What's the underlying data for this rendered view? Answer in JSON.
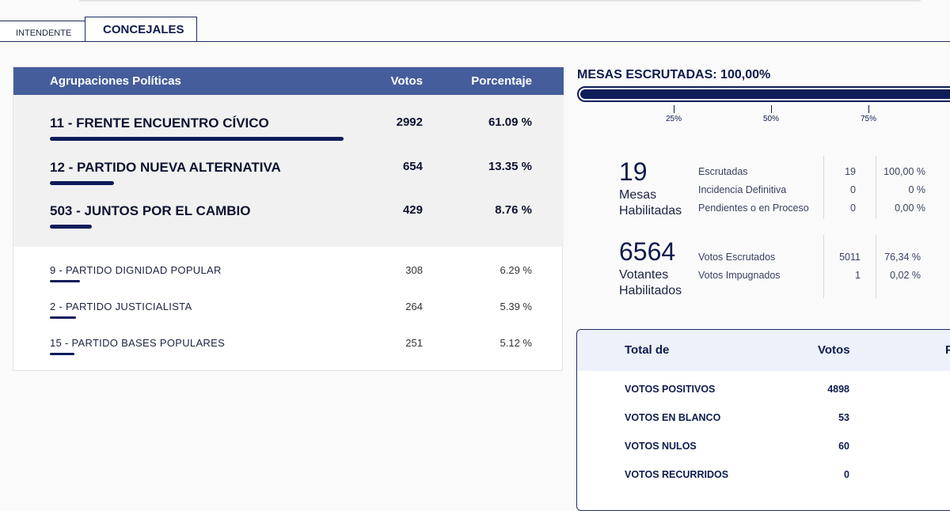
{
  "tabs": [
    {
      "label": "Intendente"
    },
    {
      "label": "CONCEJALES"
    }
  ],
  "results": {
    "headers": {
      "party": "Agrupaciones Políticas",
      "votes": "Votos",
      "percent": "Porcentaje"
    },
    "rows": [
      {
        "name": "11 - FRENTE ENCUENTRO CÍVICO",
        "votes": "2992",
        "percent": "61.09 %",
        "share": 61.09
      },
      {
        "name": "12 - PARTIDO NUEVA ALTERNATIVA",
        "votes": "654",
        "percent": "13.35 %",
        "share": 13.35
      },
      {
        "name": "503 - JUNTOS POR EL CAMBIO",
        "votes": "429",
        "percent": "8.76 %",
        "share": 8.76
      },
      {
        "name": "9 - PARTIDO DIGNIDAD POPULAR",
        "votes": "308",
        "percent": "6.29 %",
        "share": 6.29
      },
      {
        "name": "2 - PARTIDO JUSTICIALISTA",
        "votes": "264",
        "percent": "5.39 %",
        "share": 5.39
      },
      {
        "name": "15 - PARTIDO BASES POPULARES",
        "votes": "251",
        "percent": "5.12 %",
        "share": 5.12
      }
    ]
  },
  "mesas": {
    "title": "MESAS ESCRUTADAS: 100,00%",
    "progress": 100,
    "ticks": [
      "25%",
      "50%",
      "75%"
    ]
  },
  "stats": {
    "mesas_habilitadas": {
      "number": "19",
      "label_line1": "Mesas",
      "label_line2": "Habilitadas",
      "rows": [
        {
          "label": "Escrutadas",
          "value": "19",
          "percent": "100,00 %"
        },
        {
          "label": "Incidencia Definitiva",
          "value": "0",
          "percent": "0 %"
        },
        {
          "label": "Pendientes o en Proceso",
          "value": "0",
          "percent": "0,00 %"
        }
      ]
    },
    "votantes_habilitados": {
      "number": "6564",
      "label_line1": "Votantes",
      "label_line2": "Habilitados",
      "rows": [
        {
          "label": "Votos Escrutados",
          "value": "5011",
          "percent": "76,34 %"
        },
        {
          "label": "Votos Impugnados",
          "value": "1",
          "percent": "0,02 %"
        }
      ]
    }
  },
  "totals": {
    "headers": {
      "label": "Total de",
      "votes": "Votos",
      "extra": "P"
    },
    "rows": [
      {
        "label": "VOTOS POSITIVOS",
        "votes": "4898"
      },
      {
        "label": "VOTOS EN BLANCO",
        "votes": "53"
      },
      {
        "label": "VOTOS NULOS",
        "votes": "60"
      },
      {
        "label": "VOTOS RECURRIDOS",
        "votes": "0"
      }
    ]
  },
  "colors": {
    "accent": "#0f1d5a",
    "header": "#455d9b"
  }
}
